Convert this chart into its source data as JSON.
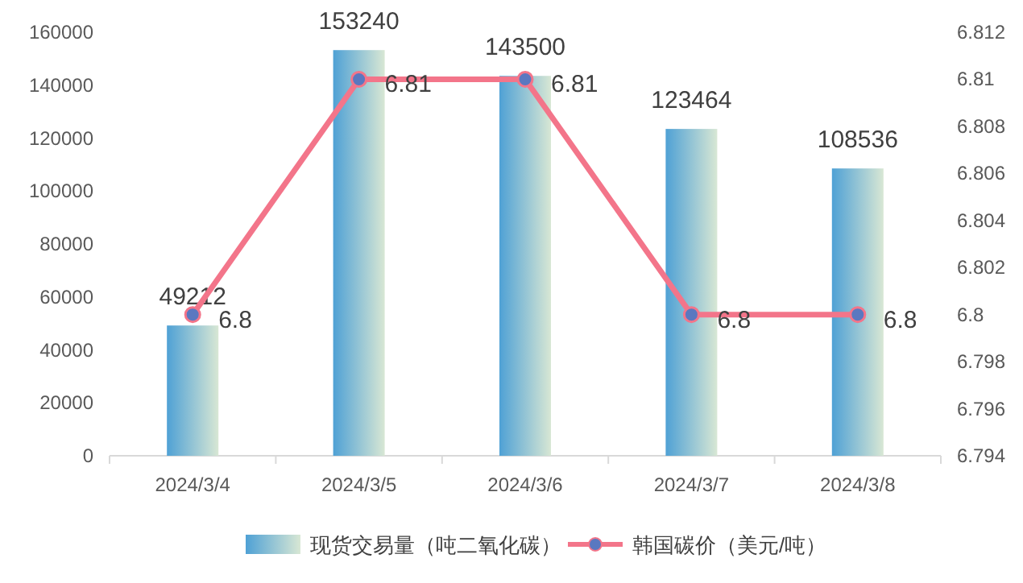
{
  "chart_data": {
    "type": "bar",
    "categories": [
      "2024/3/4",
      "2024/3/5",
      "2024/3/6",
      "2024/3/7",
      "2024/3/8"
    ],
    "series": [
      {
        "name": "现货交易量（吨二氧化碳）",
        "color": "#62b3da",
        "values": [
          49212,
          153240,
          143500,
          123464,
          108536
        ]
      },
      {
        "name": "韩国碳价（美元/吨）",
        "type": "line",
        "axis": "y2",
        "color": "#f3758a",
        "marker": "circle",
        "values": [
          6.8,
          6.81,
          6.81,
          6.8,
          6.8
        ]
      }
    ],
    "ylim": [
      0,
      160000
    ],
    "yticks": [
      0,
      20000,
      40000,
      60000,
      80000,
      100000,
      120000,
      140000,
      160000
    ],
    "y2lim": [
      6.794,
      6.812
    ],
    "y2ticks": [
      6.794,
      6.796,
      6.798,
      6.8,
      6.802,
      6.804,
      6.806,
      6.808,
      6.81,
      6.812
    ],
    "data_labels": true,
    "legend": "bottom",
    "grid": false
  }
}
